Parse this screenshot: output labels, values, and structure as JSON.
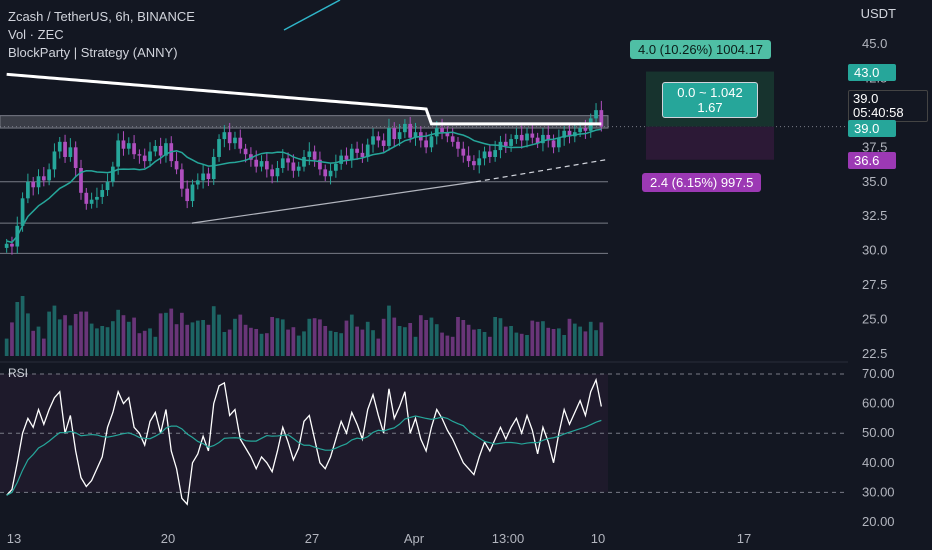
{
  "header": {
    "symbol": "Zcash / TetherUS, 6h, BINANCE",
    "volume": "Vol · ZEC",
    "strategy": "BlockParty | Strategy (ANNY)",
    "currency": "USDT"
  },
  "price_tags": {
    "tp_level": "43.0",
    "current_price": "39.0",
    "countdown": "05:40:58",
    "entry_level": "39.0",
    "sl_level": "36.6"
  },
  "position": {
    "target_label": "4.0 (10.26%) 1004.17",
    "ratio_line1": "0.0 ~ 1.042",
    "ratio_line2": "1.67",
    "stop_label": "2.4 (6.15%) 997.5"
  },
  "rsi_label": "RSI",
  "colors": {
    "background": "#131722",
    "bull": "#26a69a",
    "bear": "#b04fbf",
    "target_tag": "#4fbfa5",
    "stop_tag": "#9c39b4"
  },
  "chart_data": {
    "type": "candlestick",
    "price_axis": {
      "ticks": [
        "45.0",
        "42.5",
        "40.0",
        "37.5",
        "35.0",
        "32.5",
        "30.0",
        "27.5",
        "25.0",
        "22.5"
      ],
      "range": [
        22.5,
        45.0
      ]
    },
    "rsi_axis": {
      "ticks": [
        "70.00",
        "60.00",
        "50.00",
        "40.00",
        "30.00",
        "20.00"
      ],
      "range": [
        20,
        70
      ]
    },
    "x_ticks": [
      "13",
      "20",
      "27",
      "Apr",
      "13:00",
      "10",
      "17"
    ],
    "horizontal_levels": [
      39.5,
      35.0,
      32.0,
      29.8
    ],
    "close": [
      30.5,
      30.3,
      31.8,
      33.8,
      35.0,
      34.6,
      35.4,
      35.1,
      35.9,
      37.2,
      37.9,
      36.8,
      37.5,
      36.0,
      34.2,
      33.4,
      33.7,
      33.9,
      34.4,
      35.0,
      36.1,
      38.0,
      37.4,
      37.8,
      37.0,
      36.9,
      36.5,
      37.2,
      37.6,
      36.9,
      37.8,
      36.5,
      35.9,
      34.5,
      33.6,
      34.8,
      35.1,
      35.6,
      35.2,
      36.8,
      38.1,
      38.6,
      37.8,
      38.2,
      37.4,
      37.0,
      36.6,
      36.1,
      36.5,
      35.9,
      35.4,
      36.0,
      36.7,
      36.4,
      35.8,
      36.1,
      36.8,
      37.2,
      36.6,
      35.9,
      35.4,
      35.8,
      36.3,
      36.9,
      36.6,
      37.4,
      37.1,
      36.8,
      37.7,
      38.3,
      38.0,
      37.6,
      38.9,
      38.1,
      38.6,
      39.2,
      38.2,
      38.6,
      38.0,
      37.5,
      38.3,
      38.9,
      38.6,
      38.3,
      37.9,
      37.4,
      36.9,
      36.5,
      36.2,
      36.7,
      37.2,
      36.8,
      37.3,
      37.9,
      37.6,
      38.1,
      38.4,
      38.0,
      38.5,
      38.2,
      37.8,
      38.4,
      38.0,
      37.5,
      38.2,
      38.7,
      38.3,
      38.6,
      38.9,
      38.7,
      39.6,
      40.2,
      39.0
    ],
    "rsi": [
      29,
      31,
      40,
      50,
      55,
      52,
      58,
      53,
      58,
      62,
      64,
      50,
      56,
      44,
      35,
      32,
      34,
      38,
      42,
      52,
      57,
      64,
      60,
      62,
      52,
      50,
      46,
      54,
      57,
      50,
      58,
      44,
      38,
      28,
      26,
      40,
      43,
      49,
      44,
      60,
      66,
      67,
      56,
      58,
      48,
      45,
      42,
      38,
      42,
      40,
      37,
      44,
      52,
      47,
      41,
      45,
      54,
      56,
      48,
      40,
      38,
      42,
      48,
      54,
      50,
      57,
      53,
      48,
      58,
      63,
      56,
      50,
      65,
      55,
      59,
      64,
      50,
      55,
      48,
      44,
      52,
      58,
      55,
      51,
      48,
      44,
      40,
      38,
      36,
      42,
      47,
      44,
      48,
      52,
      48,
      52,
      55,
      50,
      56,
      51,
      43,
      52,
      47,
      40,
      50,
      58,
      53,
      57,
      61,
      56,
      64,
      68,
      59
    ]
  }
}
